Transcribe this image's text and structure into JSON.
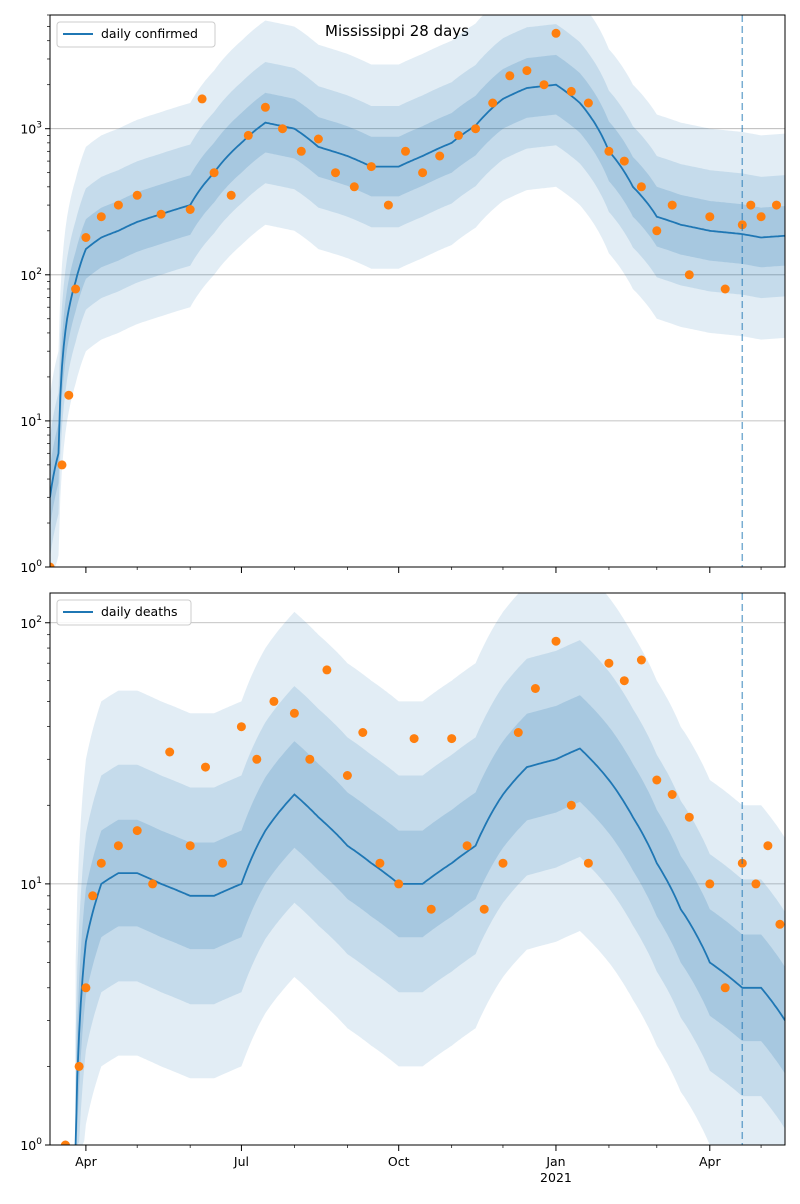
{
  "chart_data": [
    {
      "type": "line",
      "title": "Mississippi 28 days",
      "yscale": "log",
      "ylim": [
        1,
        6000
      ],
      "xlim": [
        "2020-03-11",
        "2021-05-15"
      ],
      "x_tick_labels": [
        "Apr",
        "Jul",
        "Oct",
        "Jan",
        "Apr"
      ],
      "x_year_label": "2021",
      "y_tick_labels": [
        "10^0",
        "10^1",
        "10^2",
        "10^3"
      ],
      "legend": {
        "location": "upper left",
        "entries": [
          "daily confirmed"
        ]
      },
      "grid": "horizontal",
      "forecast_start": "2021-04-20",
      "colors": {
        "line": "#1f77b4",
        "points": "#ff7f0e",
        "band": "#1f77b4",
        "vline": "#1f77b4"
      },
      "series": [
        {
          "name": "daily confirmed",
          "kind": "model-line",
          "x": [
            "2020-03-11",
            "2020-03-16",
            "2020-03-21",
            "2020-03-26",
            "2020-04-01",
            "2020-04-10",
            "2020-04-20",
            "2020-05-01",
            "2020-05-15",
            "2020-06-01",
            "2020-06-15",
            "2020-07-01",
            "2020-07-15",
            "2020-08-01",
            "2020-08-15",
            "2020-09-01",
            "2020-09-15",
            "2020-10-01",
            "2020-10-15",
            "2020-11-01",
            "2020-11-15",
            "2020-12-01",
            "2020-12-15",
            "2021-01-01",
            "2021-01-15",
            "2021-02-01",
            "2021-02-15",
            "2021-03-01",
            "2021-03-15",
            "2021-04-01",
            "2021-04-20",
            "2021-05-01",
            "2021-05-15"
          ],
          "values": [
            3,
            6,
            50,
            90,
            150,
            180,
            200,
            230,
            260,
            300,
            500,
            800,
            1100,
            1000,
            750,
            650,
            550,
            550,
            650,
            800,
            1050,
            1600,
            1900,
            2000,
            1500,
            700,
            400,
            250,
            220,
            200,
            190,
            180,
            185
          ]
        },
        {
          "name": "observed",
          "kind": "scatter",
          "x": [
            "2020-03-11",
            "2020-03-18",
            "2020-03-22",
            "2020-03-26",
            "2020-04-01",
            "2020-04-10",
            "2020-04-20",
            "2020-05-01",
            "2020-05-15",
            "2020-06-01",
            "2020-06-08",
            "2020-06-15",
            "2020-06-25",
            "2020-07-05",
            "2020-07-15",
            "2020-07-25",
            "2020-08-05",
            "2020-08-15",
            "2020-08-25",
            "2020-09-05",
            "2020-09-15",
            "2020-09-25",
            "2020-10-05",
            "2020-10-15",
            "2020-10-25",
            "2020-11-05",
            "2020-11-15",
            "2020-11-25",
            "2020-12-05",
            "2020-12-15",
            "2020-12-25",
            "2021-01-01",
            "2021-01-10",
            "2021-01-20",
            "2021-02-01",
            "2021-02-10",
            "2021-02-20",
            "2021-03-01",
            "2021-03-10",
            "2021-03-20",
            "2021-04-01",
            "2021-04-10",
            "2021-04-20",
            "2021-04-25",
            "2021-05-01",
            "2021-05-10"
          ],
          "values": [
            1,
            5,
            15,
            80,
            180,
            250,
            300,
            350,
            260,
            280,
            1600,
            500,
            350,
            900,
            1400,
            1000,
            700,
            850,
            500,
            400,
            550,
            300,
            700,
            500,
            650,
            900,
            1000,
            1500,
            2300,
            2500,
            2000,
            4500,
            1800,
            1500,
            700,
            600,
            400,
            200,
            300,
            100,
            250,
            80,
            220,
            300,
            250,
            300
          ]
        }
      ]
    },
    {
      "type": "line",
      "yscale": "log",
      "ylim": [
        1,
        130
      ],
      "xlim": [
        "2020-03-11",
        "2021-05-15"
      ],
      "x_tick_labels": [
        "Apr",
        "Jul",
        "Oct",
        "Jan",
        "Apr"
      ],
      "x_year_label": "2021",
      "y_tick_labels": [
        "10^0",
        "10^1",
        "10^2"
      ],
      "legend": {
        "location": "upper left",
        "entries": [
          "daily deaths"
        ]
      },
      "grid": "horizontal",
      "forecast_start": "2021-04-20",
      "colors": {
        "line": "#1f77b4",
        "points": "#ff7f0e",
        "band": "#1f77b4",
        "vline": "#1f77b4"
      },
      "series": [
        {
          "name": "daily deaths",
          "kind": "model-line",
          "x": [
            "2020-03-26",
            "2020-04-01",
            "2020-04-10",
            "2020-04-20",
            "2020-05-01",
            "2020-05-15",
            "2020-06-01",
            "2020-06-15",
            "2020-07-01",
            "2020-07-15",
            "2020-08-01",
            "2020-08-15",
            "2020-09-01",
            "2020-09-15",
            "2020-10-01",
            "2020-10-15",
            "2020-11-01",
            "2020-11-15",
            "2020-12-01",
            "2020-12-15",
            "2021-01-01",
            "2021-01-15",
            "2021-02-01",
            "2021-02-15",
            "2021-03-01",
            "2021-03-15",
            "2021-04-01",
            "2021-04-20",
            "2021-05-01",
            "2021-05-15"
          ],
          "values": [
            1,
            6,
            10,
            11,
            11,
            10,
            9,
            9,
            10,
            16,
            22,
            18,
            14,
            12,
            10,
            10,
            12,
            14,
            22,
            28,
            30,
            33,
            25,
            18,
            12,
            8,
            5,
            4,
            4,
            3
          ]
        },
        {
          "name": "observed",
          "kind": "scatter",
          "x": [
            "2020-03-20",
            "2020-03-28",
            "2020-04-01",
            "2020-04-05",
            "2020-04-10",
            "2020-04-20",
            "2020-05-01",
            "2020-05-10",
            "2020-05-20",
            "2020-06-01",
            "2020-06-10",
            "2020-06-20",
            "2020-07-01",
            "2020-07-10",
            "2020-07-20",
            "2020-08-01",
            "2020-08-10",
            "2020-08-20",
            "2020-09-01",
            "2020-09-10",
            "2020-09-20",
            "2020-10-01",
            "2020-10-10",
            "2020-10-20",
            "2020-11-01",
            "2020-11-10",
            "2020-11-20",
            "2020-12-01",
            "2020-12-10",
            "2020-12-20",
            "2021-01-01",
            "2021-01-10",
            "2021-01-20",
            "2021-02-01",
            "2021-02-10",
            "2021-02-20",
            "2021-03-01",
            "2021-03-10",
            "2021-03-20",
            "2021-04-01",
            "2021-04-10",
            "2021-04-20",
            "2021-04-28",
            "2021-05-05",
            "2021-05-12"
          ],
          "values": [
            1,
            2,
            4,
            9,
            12,
            14,
            16,
            10,
            32,
            14,
            28,
            12,
            40,
            30,
            50,
            45,
            30,
            66,
            26,
            38,
            12,
            10,
            36,
            8,
            36,
            14,
            8,
            12,
            38,
            56,
            85,
            20,
            12,
            70,
            60,
            72,
            25,
            22,
            18,
            10,
            4,
            12,
            10,
            14,
            7
          ]
        }
      ]
    }
  ]
}
